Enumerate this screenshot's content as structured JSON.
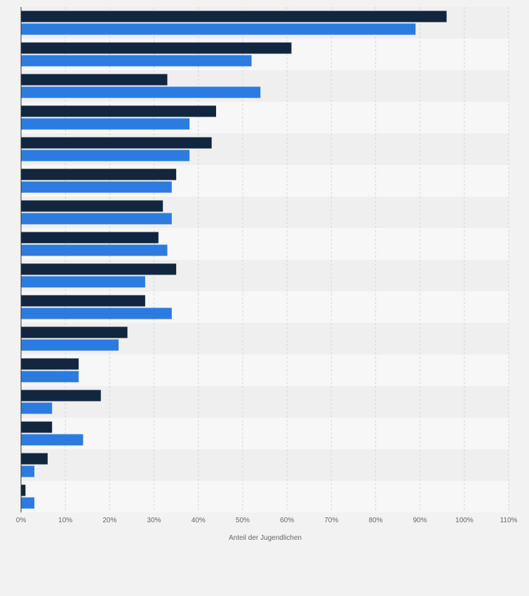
{
  "chart_data": {
    "type": "bar",
    "orientation": "horizontal",
    "xlabel": "Anteil der Jugendlichen",
    "xlim": [
      0,
      110
    ],
    "x_ticks": [
      "0%",
      "10%",
      "20%",
      "30%",
      "40%",
      "50%",
      "60%",
      "70%",
      "80%",
      "90%",
      "100%",
      "110%"
    ],
    "grid": true,
    "categories": [
      "",
      "",
      "",
      "",
      "",
      "",
      "",
      "",
      "",
      "",
      "",
      "",
      "",
      "",
      "",
      ""
    ],
    "series": [
      {
        "color": "#12263f",
        "values": [
          96,
          61,
          33,
          44,
          43,
          35,
          32,
          31,
          35,
          28,
          24,
          13,
          18,
          7,
          6,
          1
        ]
      },
      {
        "color": "#2c7be0",
        "values": [
          89,
          52,
          54,
          38,
          38,
          34,
          34,
          33,
          28,
          34,
          22,
          13,
          7,
          14,
          3,
          3
        ]
      }
    ]
  },
  "colors": {
    "background": "#f2f2f2",
    "band_light": "#f7f7f7",
    "band_dark": "#efefef",
    "grid": "#d6d6d6",
    "axis": "#333333",
    "tick_text": "#666666"
  }
}
